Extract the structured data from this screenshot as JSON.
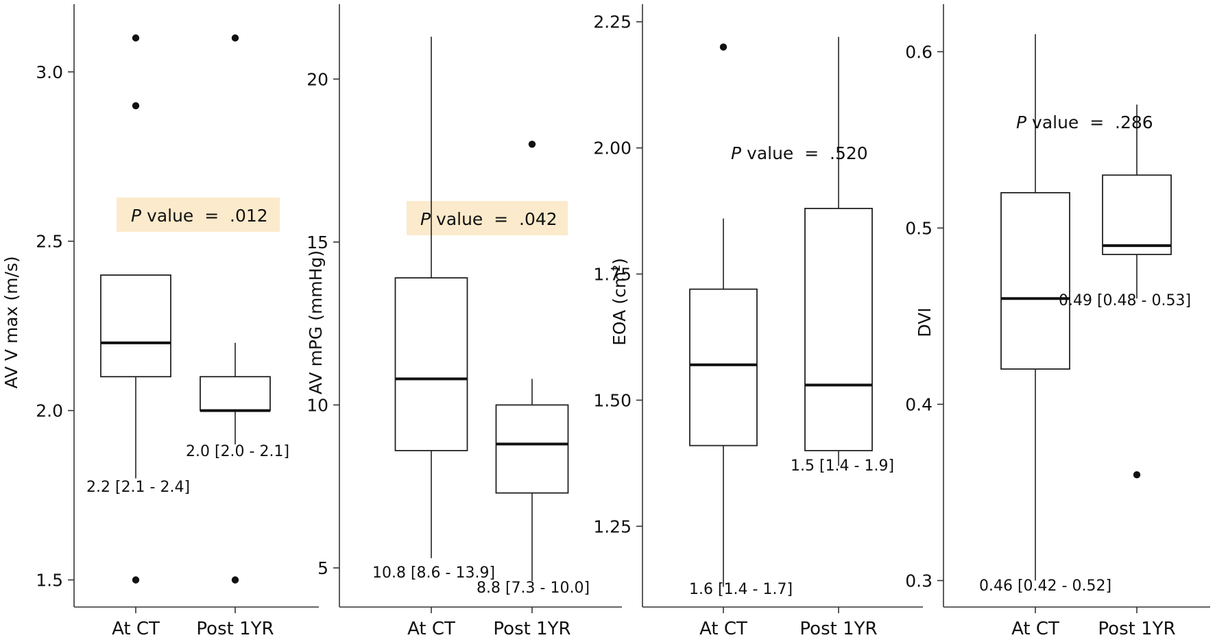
{
  "chart_data": [
    {
      "type": "box",
      "ylabel": "AV V max (m/s)",
      "ylim": [
        1.42,
        3.2
      ],
      "yticks": [
        {
          "v": 1.5,
          "label": "1.5"
        },
        {
          "v": 2.0,
          "label": "2.0"
        },
        {
          "v": 2.5,
          "label": "2.5"
        },
        {
          "v": 3.0,
          "label": "3.0"
        }
      ],
      "categories": [
        "At CT",
        "Post 1YR"
      ],
      "boxes": [
        {
          "whisker_low": 1.8,
          "q1": 2.1,
          "median": 2.2,
          "q3": 2.4,
          "whisker_high": 2.4,
          "outliers": [
            3.1,
            2.9,
            1.5
          ],
          "label": "2.2 [2.1 - 2.4]"
        },
        {
          "whisker_low": 1.9,
          "q1": 2.0,
          "median": 2.0,
          "q3": 2.1,
          "whisker_high": 2.2,
          "outliers": [
            3.1,
            1.5
          ],
          "label": "2.0 [2.0 - 2.1]"
        }
      ],
      "p_value": {
        "p": "P",
        "text": " value  =  .012",
        "highlight": true,
        "highlight_color": "#fbeacb"
      }
    },
    {
      "type": "box",
      "ylabel": "AV mPG (mmHg)",
      "ylim": [
        3.8,
        22.3
      ],
      "yticks": [
        {
          "v": 5,
          "label": "5"
        },
        {
          "v": 10,
          "label": "10"
        },
        {
          "v": 15,
          "label": "15"
        },
        {
          "v": 20,
          "label": "20"
        }
      ],
      "categories": [
        "At CT",
        "Post 1YR"
      ],
      "boxes": [
        {
          "whisker_low": 5.3,
          "q1": 8.6,
          "median": 10.8,
          "q3": 13.9,
          "whisker_high": 21.3,
          "outliers": [],
          "label": "10.8 [8.6 - 13.9]"
        },
        {
          "whisker_low": 4.6,
          "q1": 7.3,
          "median": 8.8,
          "q3": 10.0,
          "whisker_high": 10.8,
          "outliers": [
            18.0
          ],
          "label": "8.8 [7.3 - 10.0]"
        }
      ],
      "p_value": {
        "p": "P",
        "text": " value  =  .042",
        "highlight": true,
        "highlight_color": "#fbeacb"
      }
    },
    {
      "type": "box",
      "ylabel": "EOA (cm²)",
      "ylim": [
        1.09,
        2.285
      ],
      "yticks": [
        {
          "v": 1.25,
          "label": "1.25"
        },
        {
          "v": 1.5,
          "label": "1.50"
        },
        {
          "v": 1.75,
          "label": "1.75"
        },
        {
          "v": 2.0,
          "label": "2.00"
        },
        {
          "v": 2.25,
          "label": "2.25"
        }
      ],
      "categories": [
        "At CT",
        "Post 1YR"
      ],
      "boxes": [
        {
          "whisker_low": 1.13,
          "q1": 1.41,
          "median": 1.57,
          "q3": 1.72,
          "whisker_high": 1.86,
          "outliers": [
            2.2
          ],
          "label": "1.6 [1.4 - 1.7]"
        },
        {
          "whisker_low": 1.37,
          "q1": 1.4,
          "median": 1.53,
          "q3": 1.88,
          "whisker_high": 2.22,
          "outliers": [],
          "label": "1.5 [1.4 - 1.9]"
        }
      ],
      "p_value": {
        "p": "P",
        "text": " value  =  .520",
        "highlight": false
      }
    },
    {
      "type": "box",
      "ylabel": "DVI",
      "ylim": [
        0.285,
        0.627
      ],
      "yticks": [
        {
          "v": 0.3,
          "label": "0.3"
        },
        {
          "v": 0.4,
          "label": "0.4"
        },
        {
          "v": 0.5,
          "label": "0.5"
        },
        {
          "v": 0.6,
          "label": "0.6"
        }
      ],
      "categories": [
        "At CT",
        "Post 1YR"
      ],
      "boxes": [
        {
          "whisker_low": 0.3,
          "q1": 0.42,
          "median": 0.46,
          "q3": 0.52,
          "whisker_high": 0.61,
          "outliers": [],
          "label": "0.46 [0.42 - 0.52]"
        },
        {
          "whisker_low": 0.46,
          "q1": 0.485,
          "median": 0.49,
          "q3": 0.53,
          "whisker_high": 0.57,
          "outliers": [
            0.36
          ],
          "label": "0.49 [0.48 - 0.53]"
        }
      ],
      "p_value": {
        "p": "P",
        "text": " value  =  .286",
        "highlight": false
      }
    }
  ]
}
